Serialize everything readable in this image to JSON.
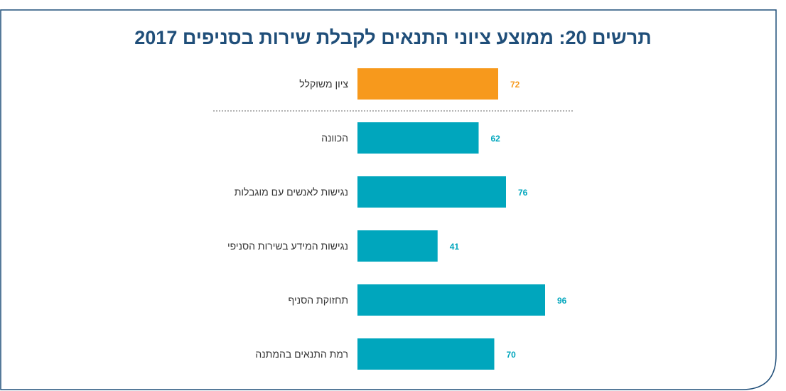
{
  "chart_data": {
    "type": "bar",
    "orientation": "horizontal",
    "title": "תרשים 20: ממוצע ציוני התנאים לקבלת שירות בסניפים 2017",
    "xlabel": "",
    "ylabel": "",
    "xlim": [
      0,
      100
    ],
    "grid": false,
    "legend": "none",
    "categories": [
      "ציון משוקלל",
      "הכוונה",
      "נגישות לאנשים עם מוגבלות",
      "נגישות המידע בשירות הסניפי",
      "תחזוקת הסניף",
      "רמת התנאים בהמתנה"
    ],
    "values": [
      72,
      62,
      76,
      41,
      96,
      70
    ],
    "data_labels": [
      "72",
      "62",
      "76",
      "41",
      "96",
      "70"
    ],
    "highlight_index": 0
  },
  "colors": {
    "frame": "#1f4e79",
    "title": "#1f4e79",
    "highlight_bar": "#f7991c",
    "highlight_label": "#f7991c",
    "bar": "#00a6bd",
    "label": "#00a6bd",
    "category_text": "#333333",
    "separator": "#9a9a9a"
  }
}
